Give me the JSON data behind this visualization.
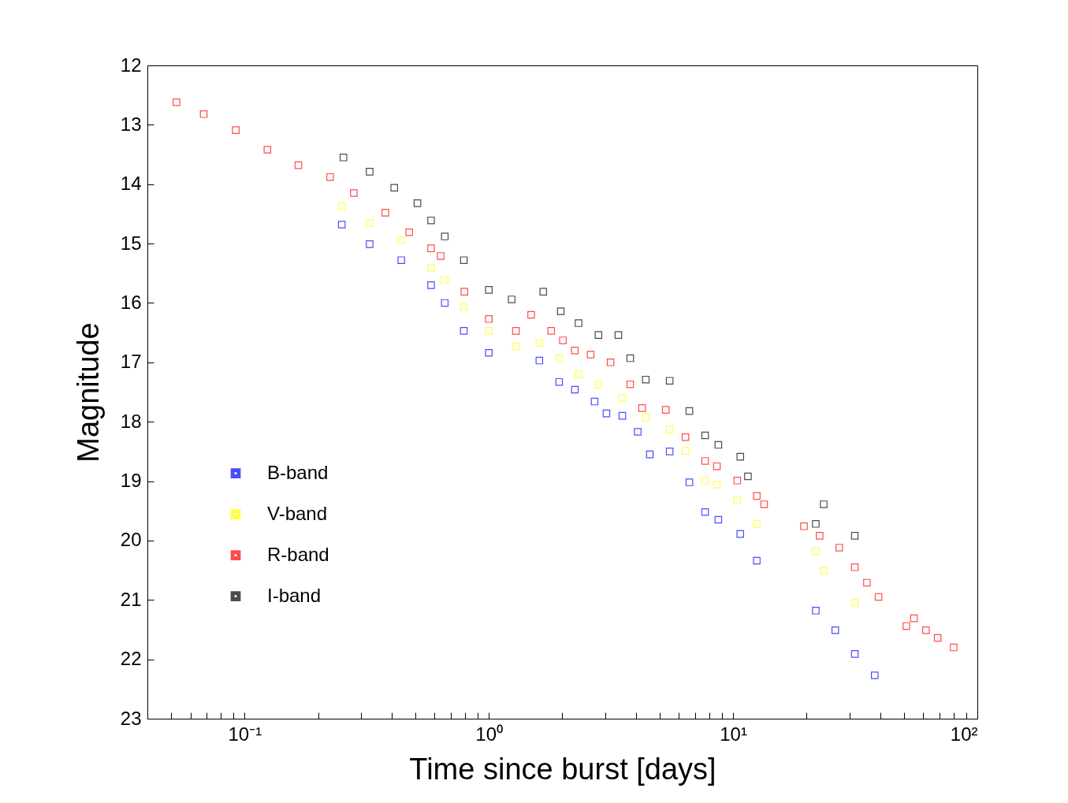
{
  "chart_data": {
    "type": "scatter",
    "xlabel": "Time since burst [days]",
    "ylabel": "Magnitude",
    "log": "x",
    "grid": false,
    "legend": "left",
    "marker": "square",
    "xlim": [
      0.04,
      100
    ],
    "ylim": [
      23,
      12
    ],
    "xticks": [
      {
        "value": 0.05,
        "label": null
      },
      {
        "value": 0.06,
        "label": null
      },
      {
        "value": 0.07,
        "label": null
      },
      {
        "value": 0.08,
        "label": null
      },
      {
        "value": 0.09,
        "label": null
      },
      {
        "value": 0.1,
        "label": "10⁻¹"
      },
      {
        "value": 0.2,
        "label": null
      },
      {
        "value": 0.3,
        "label": null
      },
      {
        "value": 0.4,
        "label": null
      },
      {
        "value": 0.5,
        "label": null
      },
      {
        "value": 0.6,
        "label": null
      },
      {
        "value": 0.7,
        "label": null
      },
      {
        "value": 0.8,
        "label": null
      },
      {
        "value": 0.9,
        "label": null
      },
      {
        "value": 1,
        "label": "10⁰"
      },
      {
        "value": 2,
        "label": null
      },
      {
        "value": 3,
        "label": null
      },
      {
        "value": 4,
        "label": null
      },
      {
        "value": 5,
        "label": null
      },
      {
        "value": 6,
        "label": null
      },
      {
        "value": 7,
        "label": null
      },
      {
        "value": 8,
        "label": null
      },
      {
        "value": 9,
        "label": null
      },
      {
        "value": 10,
        "label": "10¹"
      },
      {
        "value": 20,
        "label": null
      },
      {
        "value": 30,
        "label": null
      },
      {
        "value": 40,
        "label": null
      },
      {
        "value": 50,
        "label": null
      },
      {
        "value": 60,
        "label": null
      },
      {
        "value": 70,
        "label": null
      },
      {
        "value": 80,
        "label": null
      },
      {
        "value": 90,
        "label": null
      },
      {
        "value": 100,
        "label": "10²"
      }
    ],
    "yticks": [
      12,
      13,
      14,
      15,
      16,
      17,
      18,
      19,
      20,
      21,
      22,
      23
    ],
    "series": [
      {
        "name": "B-band",
        "color": "#0000ff",
        "x": [
          0.25,
          0.325,
          0.438,
          0.58,
          0.66,
          0.79,
          1.0,
          1.61,
          1.94,
          2.25,
          2.71,
          3.03,
          3.52,
          4.07,
          4.56,
          5.5,
          6.62,
          7.68,
          8.7,
          10.7,
          12.5,
          21.8,
          26.2,
          31.5,
          38
        ],
        "values": [
          14.68,
          15.01,
          15.28,
          15.7,
          16.0,
          16.47,
          16.84,
          16.97,
          17.33,
          17.46,
          17.66,
          17.86,
          17.9,
          18.17,
          18.55,
          18.5,
          19.02,
          19.52,
          19.65,
          19.89,
          20.34,
          21.18,
          21.51,
          21.91,
          22.27
        ]
      },
      {
        "name": "V-band",
        "color": "#ffff00",
        "x": [
          0.25,
          0.325,
          0.438,
          0.58,
          0.66,
          0.79,
          1.0,
          1.29,
          1.61,
          1.94,
          2.33,
          2.81,
          3.52,
          4.39,
          5.5,
          6.38,
          7.68,
          8.58,
          10.4,
          12.5,
          21.8,
          23.5,
          31.5
        ],
        "values": [
          14.37,
          14.65,
          14.94,
          15.41,
          15.61,
          16.07,
          16.47,
          16.73,
          16.67,
          16.93,
          17.2,
          17.37,
          17.6,
          17.93,
          18.13,
          18.49,
          18.99,
          19.06,
          19.32,
          19.72,
          20.18,
          20.51,
          21.05
        ]
      },
      {
        "name": "R-band",
        "color": "#ff0000",
        "x": [
          0.0526,
          0.068,
          0.092,
          0.124,
          0.166,
          0.224,
          0.28,
          0.377,
          0.472,
          0.58,
          0.635,
          0.794,
          1.0,
          1.29,
          1.49,
          1.8,
          2.01,
          2.25,
          2.61,
          3.15,
          3.79,
          4.24,
          5.3,
          6.38,
          7.68,
          8.58,
          10.4,
          12.5,
          13.4,
          19.5,
          22.6,
          27.2,
          31.5,
          35.3,
          39.4,
          51.2,
          55,
          61.6,
          68.8,
          80
        ],
        "values": [
          12.62,
          12.82,
          13.09,
          13.42,
          13.68,
          13.88,
          14.15,
          14.48,
          14.81,
          15.08,
          15.21,
          15.81,
          16.27,
          16.47,
          16.2,
          16.47,
          16.63,
          16.8,
          16.87,
          17.0,
          17.37,
          17.77,
          17.8,
          18.26,
          18.66,
          18.75,
          18.99,
          19.25,
          19.39,
          19.76,
          19.92,
          20.12,
          20.45,
          20.71,
          20.95,
          21.44,
          21.31,
          21.51,
          21.64,
          21.8
        ]
      },
      {
        "name": "I-band",
        "color": "#000000",
        "x": [
          0.254,
          0.325,
          0.41,
          0.51,
          0.58,
          0.66,
          0.79,
          1.0,
          1.24,
          1.67,
          1.97,
          2.33,
          2.81,
          3.39,
          3.79,
          4.39,
          5.5,
          6.62,
          7.68,
          8.7,
          10.7,
          11.5,
          21.8,
          23.5,
          31.5
        ],
        "values": [
          13.55,
          13.79,
          14.06,
          14.32,
          14.61,
          14.88,
          15.28,
          15.78,
          15.94,
          15.81,
          16.14,
          16.34,
          16.54,
          16.54,
          16.93,
          17.29,
          17.31,
          17.82,
          18.23,
          18.39,
          18.59,
          18.92,
          19.72,
          19.39,
          19.92
        ]
      }
    ]
  }
}
